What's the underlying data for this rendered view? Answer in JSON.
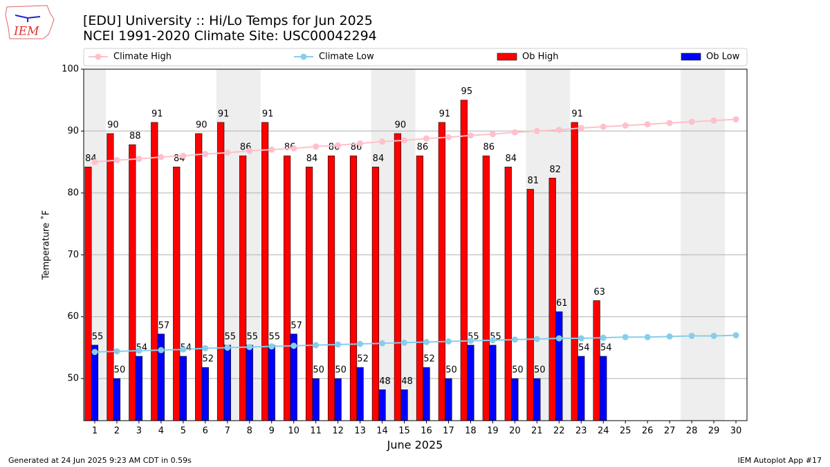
{
  "logo": "IEM",
  "footer": {
    "left": "Generated at 24 Jun 2025 9:23 AM CDT in 0.59s",
    "right": "IEM Autoplot App #17"
  },
  "chart_data": {
    "type": "bar",
    "title": "[EDU] University :: Hi/Lo Temps for Jun 2025",
    "subtitle": "NCEI 1991-2020 Climate Site: USC00042294",
    "x_label": "June 2025",
    "y_label": "Temperature ˚F",
    "x": [
      1,
      2,
      3,
      4,
      5,
      6,
      7,
      8,
      9,
      10,
      11,
      12,
      13,
      14,
      15,
      16,
      17,
      18,
      19,
      20,
      21,
      22,
      23,
      24,
      25,
      26,
      27,
      28,
      29,
      30
    ],
    "xlim": [
      0.5,
      30.5
    ],
    "xticks": [
      1,
      2,
      3,
      4,
      5,
      6,
      7,
      8,
      9,
      10,
      11,
      12,
      13,
      14,
      15,
      16,
      17,
      18,
      19,
      20,
      21,
      22,
      23,
      24,
      25,
      26,
      27,
      28,
      29,
      30
    ],
    "ylim": [
      43.2,
      100
    ],
    "yticks": [
      50,
      60,
      70,
      80,
      90,
      100
    ],
    "grid": true,
    "shaded_spans": [
      [
        0.5,
        1.5
      ],
      [
        6.5,
        8.5
      ],
      [
        13.5,
        15.5
      ],
      [
        20.5,
        22.5
      ],
      [
        27.5,
        29.5
      ]
    ],
    "shade_color": "#eeeeee",
    "legend": "top",
    "series": [
      {
        "name": "Climate High",
        "type": "line",
        "color": "#ffc0cb",
        "values": [
          85.0,
          85.3,
          85.5,
          85.8,
          86.0,
          86.3,
          86.5,
          86.8,
          87.0,
          87.2,
          87.5,
          87.7,
          88.0,
          88.3,
          88.5,
          88.8,
          89.0,
          89.3,
          89.5,
          89.8,
          90.0,
          90.2,
          90.5,
          90.7,
          90.9,
          91.1,
          91.3,
          91.5,
          91.7,
          91.9
        ]
      },
      {
        "name": "Climate Low",
        "type": "line",
        "color": "#87ceeb",
        "values": [
          54.3,
          54.4,
          54.5,
          54.6,
          54.7,
          54.9,
          55.0,
          55.1,
          55.2,
          55.3,
          55.4,
          55.5,
          55.6,
          55.7,
          55.8,
          55.9,
          56.0,
          56.1,
          56.2,
          56.3,
          56.4,
          56.5,
          56.5,
          56.6,
          56.7,
          56.7,
          56.8,
          56.9,
          56.9,
          57.0
        ]
      },
      {
        "name": "Ob High",
        "type": "bar",
        "color": "#ff0000",
        "values": [
          84.2,
          89.6,
          87.8,
          91.4,
          84.2,
          89.6,
          91.4,
          86,
          91.4,
          86,
          84.2,
          86,
          86,
          84.2,
          89.6,
          86,
          91.4,
          95,
          86,
          84.2,
          80.6,
          82.4,
          91.4,
          62.6,
          null,
          null,
          null,
          null,
          null,
          null
        ],
        "value_labels": [
          "84",
          "90",
          "88",
          "91",
          "84",
          "90",
          "91",
          "86",
          "91",
          "86",
          "84",
          "86",
          "86",
          "84",
          "90",
          "86",
          "91",
          "95",
          "86",
          "84",
          "81",
          "82",
          "91",
          "63",
          null,
          null,
          null,
          null,
          null,
          null
        ]
      },
      {
        "name": "Ob Low",
        "type": "bar",
        "color": "#0000ff",
        "values": [
          55.4,
          50,
          53.6,
          57.2,
          53.6,
          51.8,
          55.4,
          55.4,
          55.4,
          57.2,
          50,
          50,
          51.8,
          48.2,
          48.2,
          51.8,
          50,
          55.4,
          55.4,
          50,
          50,
          60.8,
          53.6,
          53.6,
          null,
          null,
          null,
          null,
          null,
          null
        ],
        "value_labels": [
          "55",
          "50",
          "54",
          "57",
          "54",
          "52",
          "55",
          "55",
          "55",
          "57",
          "50",
          "50",
          "52",
          "48",
          "48",
          "52",
          "50",
          "55",
          "55",
          "50",
          "50",
          "61",
          "54",
          "54",
          null,
          null,
          null,
          null,
          null,
          null
        ]
      }
    ]
  }
}
